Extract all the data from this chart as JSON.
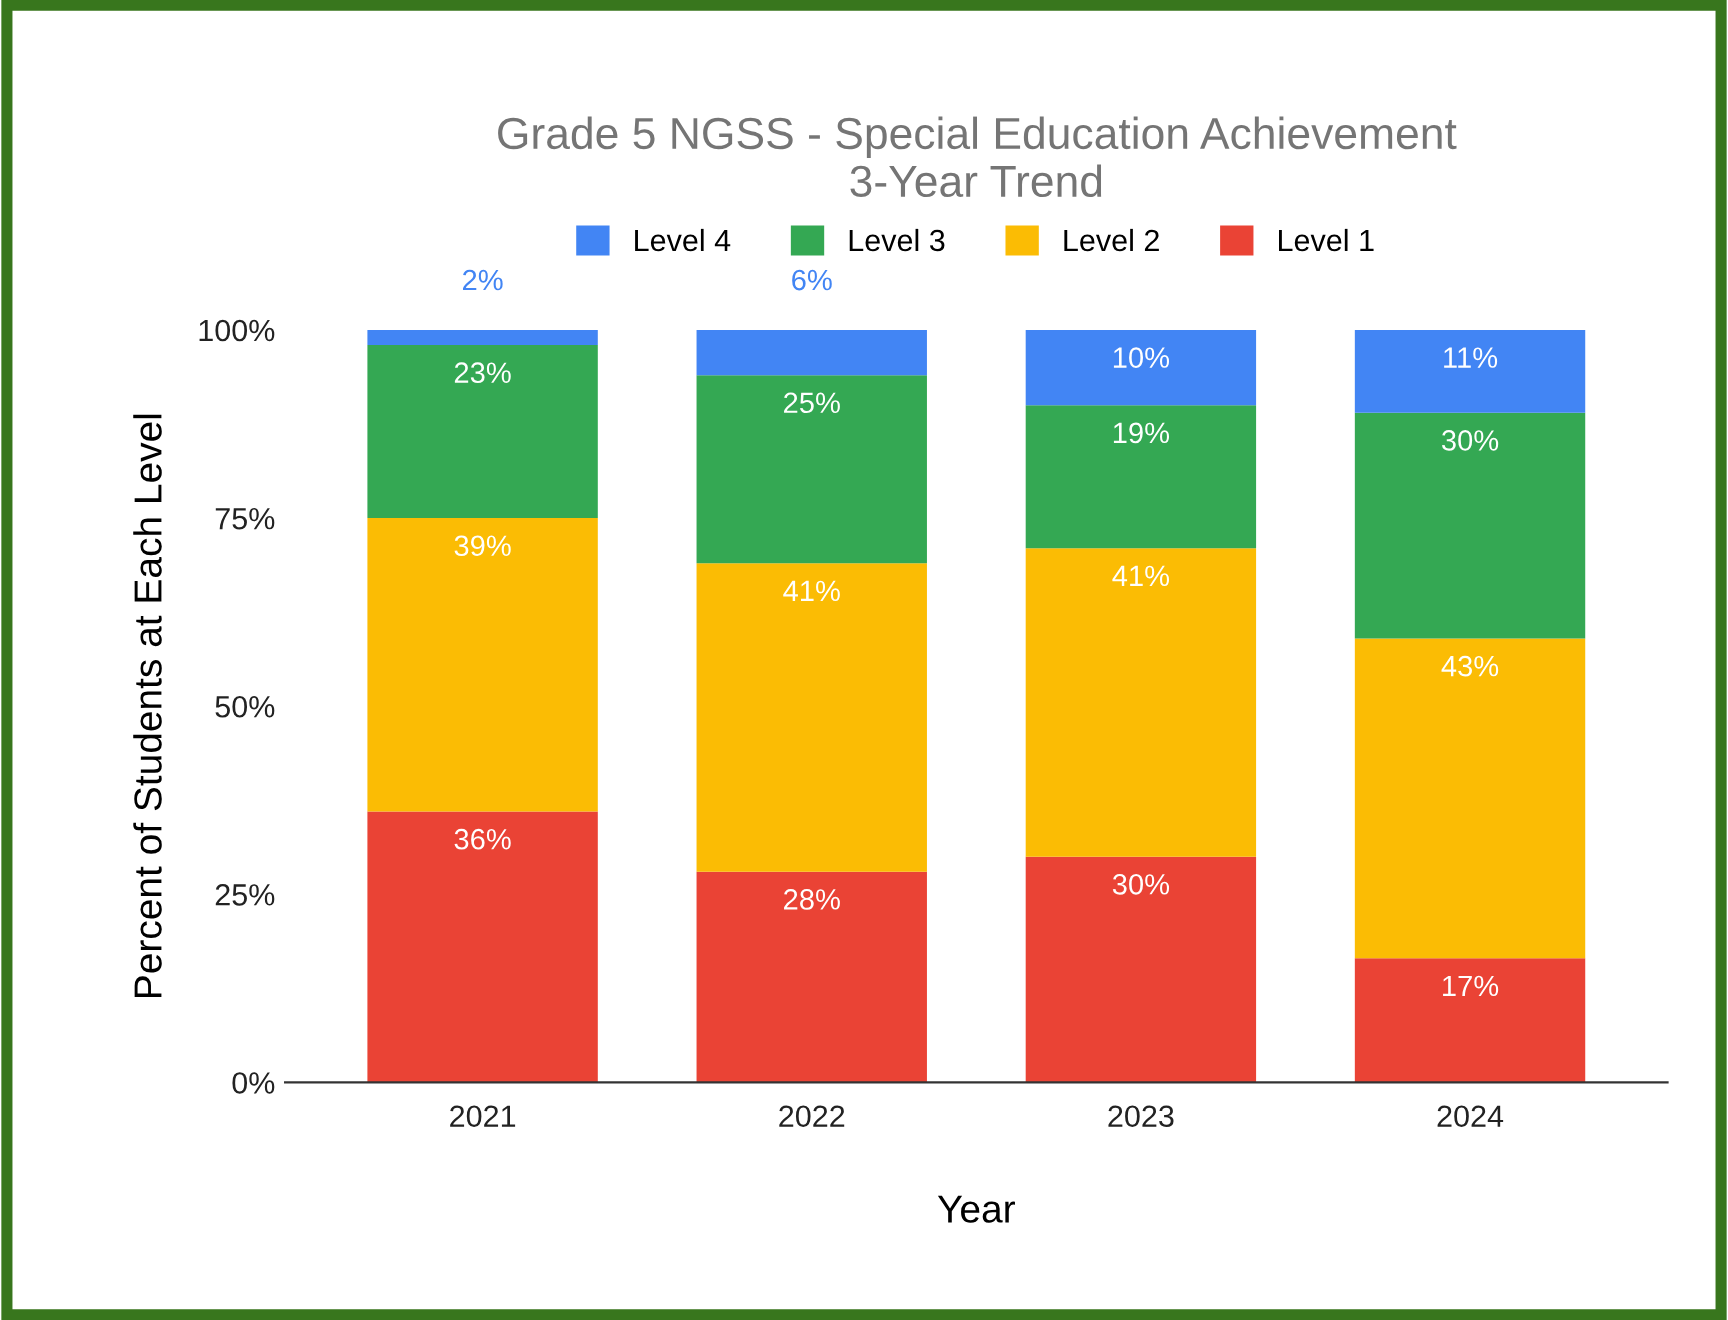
{
  "chart_data": {
    "type": "bar",
    "stacked": true,
    "title": "Grade 5 NGSS - Special Education Achievement\n3-Year Trend",
    "xlabel": "Year",
    "ylabel": "Percent of Students at Each Level",
    "categories": [
      "2021",
      "2022",
      "2023",
      "2024"
    ],
    "series": [
      {
        "name": "Level 1",
        "color": "#ea4335",
        "values": [
          36,
          28,
          30,
          16.5
        ],
        "value_labels": [
          "36%",
          "28%",
          "30%",
          "17%"
        ]
      },
      {
        "name": "Level 2",
        "color": "#fbbc04",
        "values": [
          39,
          41,
          41,
          42.5
        ],
        "value_labels": [
          "39%",
          "41%",
          "41%",
          "43%"
        ]
      },
      {
        "name": "Level 3",
        "color": "#34a853",
        "values": [
          23,
          25,
          19,
          30
        ],
        "value_labels": [
          "23%",
          "25%",
          "19%",
          "30%"
        ]
      },
      {
        "name": "Level 4",
        "color": "#4285f4",
        "values": [
          2,
          6,
          10,
          11
        ],
        "value_labels": [
          "2%",
          "6%",
          "10%",
          "11%"
        ]
      }
    ],
    "ylim": [
      0,
      100
    ],
    "yticks": [
      {
        "value": 0,
        "label": "0%"
      },
      {
        "value": 25,
        "label": "25%"
      },
      {
        "value": 50,
        "label": "50%"
      },
      {
        "value": 75,
        "label": "75%"
      },
      {
        "value": 100,
        "label": "100%"
      }
    ],
    "grid": false,
    "legend": "top"
  }
}
